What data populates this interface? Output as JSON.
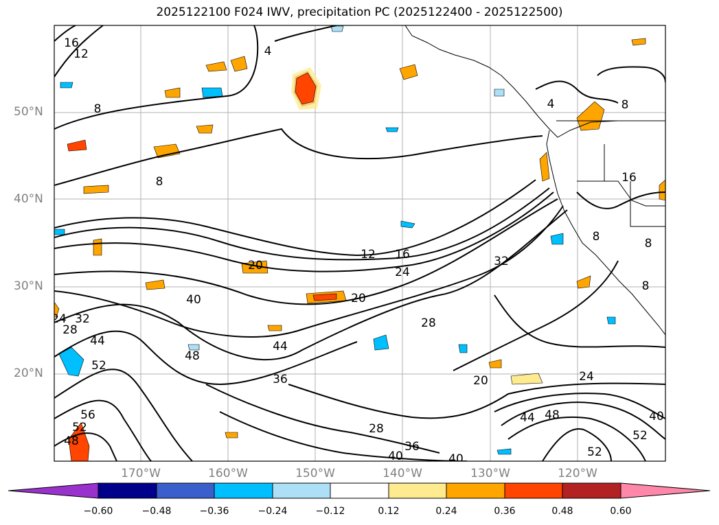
{
  "title": "2025122100 F024 IWV, precipitation PC (2025122400 - 2025122500)",
  "lat_labels": [
    "50°N",
    "40°N",
    "30°N",
    "20°N"
  ],
  "lon_labels": [
    "170°W",
    "160°W",
    "150°W",
    "140°W",
    "130°W",
    "120°W"
  ],
  "contour_labels": [
    "16",
    "12",
    "8",
    "4",
    "8",
    "16",
    "8",
    "4",
    "20",
    "12",
    "16",
    "24",
    "32",
    "40",
    "28",
    "24",
    "32",
    "44",
    "52",
    "48",
    "44",
    "36",
    "28",
    "20",
    "24",
    "56",
    "52",
    "48",
    "28",
    "36",
    "40",
    "40",
    "44",
    "48",
    "52",
    "40",
    "52",
    "8",
    "8",
    "8"
  ],
  "colorbar": {
    "ticks": [
      "−0.60",
      "−0.48",
      "−0.36",
      "−0.24",
      "−0.12",
      "0.12",
      "0.24",
      "0.36",
      "0.48",
      "0.60"
    ],
    "colors": [
      "#9932CC",
      "#00008B",
      "#3A5FCD",
      "#00BFFF",
      "#ADE0F7",
      "#FFFFFF",
      "#FFEB8F",
      "#FFA500",
      "#FF4500",
      "#B22222",
      "#FF88AA"
    ]
  },
  "palette": {
    "coast": "#000000",
    "grid": "#aaaaaa",
    "axis_label": "#808080"
  }
}
